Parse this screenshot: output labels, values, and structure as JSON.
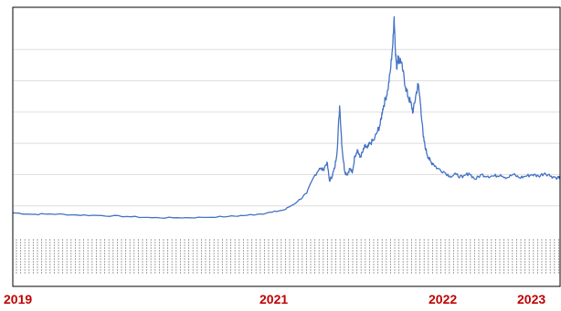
{
  "colors": {
    "line": "#4472c4",
    "grid": "#dedede",
    "frame": "#000000",
    "year_label": "#c00000",
    "tick_text": "#9a9a9a"
  },
  "chart_data": {
    "type": "line",
    "title": "",
    "xlabel": "",
    "ylabel": "",
    "grid": true,
    "legend": "none",
    "x_range": [
      2019.0,
      2023.32
    ],
    "ylim": [
      0,
      7
    ],
    "year_labels": [
      "2019",
      "2021",
      "2022",
      "2023"
    ],
    "year_positions": [
      2019.0,
      2021.1,
      2022.0,
      2022.98
    ],
    "series": [
      {
        "x": [
          2019.0,
          2019.15,
          2019.3,
          2019.5,
          2019.7,
          2019.9,
          2020.1,
          2020.3,
          2020.5,
          2020.7,
          2020.85,
          2020.95,
          2021.05,
          2021.15,
          2021.25,
          2021.32,
          2021.38,
          2021.42,
          2021.45,
          2021.48,
          2021.5,
          2021.52,
          2021.54,
          2021.56,
          2021.58,
          2021.6,
          2021.62,
          2021.64,
          2021.66,
          2021.68,
          2021.7,
          2021.72,
          2021.74,
          2021.76,
          2021.78,
          2021.8,
          2021.82,
          2021.85,
          2021.88,
          2021.9,
          2021.92,
          2021.94,
          2021.96,
          2021.98,
          2022.0,
          2022.01,
          2022.02,
          2022.03,
          2022.04,
          2022.05,
          2022.06,
          2022.08,
          2022.1,
          2022.12,
          2022.14,
          2022.16,
          2022.18,
          2022.2,
          2022.22,
          2022.24,
          2022.26,
          2022.28,
          2022.3,
          2022.32,
          2022.35,
          2022.4,
          2022.45,
          2022.5,
          2022.55,
          2022.6,
          2022.65,
          2022.7,
          2022.75,
          2022.8,
          2022.85,
          2022.9,
          2022.95,
          2023.0,
          2023.05,
          2023.1,
          2023.15,
          2023.2,
          2023.25,
          2023.3,
          2023.32
        ],
        "y": [
          0.78,
          0.73,
          0.74,
          0.71,
          0.69,
          0.66,
          0.62,
          0.62,
          0.63,
          0.66,
          0.7,
          0.74,
          0.8,
          0.88,
          1.15,
          1.4,
          1.95,
          2.2,
          2.15,
          2.4,
          1.8,
          1.95,
          2.2,
          2.75,
          4.2,
          2.8,
          2.1,
          2.0,
          2.2,
          2.05,
          2.6,
          2.8,
          2.55,
          2.7,
          2.9,
          2.85,
          3.0,
          3.1,
          3.4,
          3.6,
          4.1,
          4.4,
          4.7,
          5.3,
          6.2,
          7.05,
          6.0,
          5.4,
          5.8,
          5.6,
          5.7,
          5.3,
          4.8,
          4.5,
          4.3,
          4.0,
          4.5,
          4.9,
          4.2,
          3.2,
          2.8,
          2.55,
          2.4,
          2.35,
          2.2,
          2.1,
          1.95,
          2.0,
          1.9,
          2.05,
          1.85,
          2.0,
          1.95,
          1.95,
          2.0,
          1.9,
          2.0,
          1.9,
          1.95,
          2.0,
          1.95,
          2.05,
          1.95,
          1.9,
          1.92
        ]
      }
    ]
  }
}
